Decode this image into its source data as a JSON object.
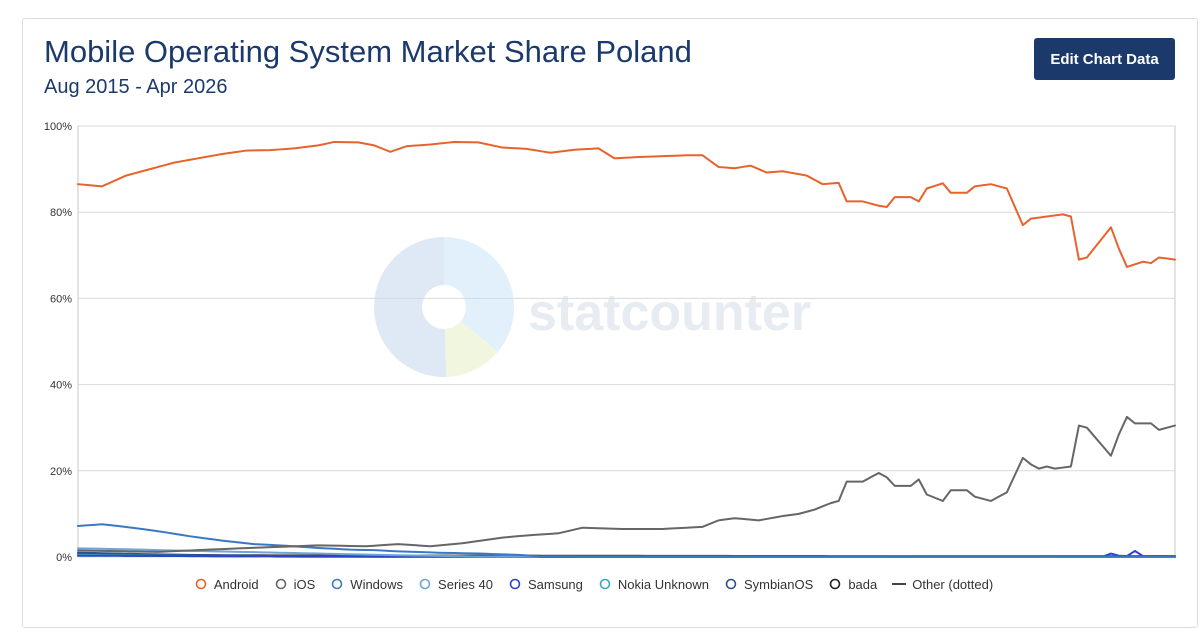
{
  "title": "Mobile Operating System Market Share Poland",
  "subtitle": "Aug 2015 - Apr 2026",
  "edit_button_label": "Edit Chart Data",
  "watermark_text": "statcounter",
  "chart_data": {
    "type": "line",
    "x_start": "2015-08",
    "x_end": "2026-04",
    "y_ticks": [
      "0%",
      "20%",
      "40%",
      "60%",
      "80%",
      "100%"
    ],
    "ylim": [
      0,
      100
    ],
    "grid": true,
    "legend_position": "bottom",
    "series": [
      {
        "name": "Android",
        "color": "#e8622c",
        "line_style": "solid",
        "marker": "circle",
        "anchors": [
          [
            0,
            86.5
          ],
          [
            3,
            86
          ],
          [
            6,
            88.5
          ],
          [
            9,
            90
          ],
          [
            12,
            91.5
          ],
          [
            15,
            92.5
          ],
          [
            18,
            93.5
          ],
          [
            21,
            94.3
          ],
          [
            24,
            94.4
          ],
          [
            27,
            94.8
          ],
          [
            30,
            95.5
          ],
          [
            32,
            96.3
          ],
          [
            35,
            96.2
          ],
          [
            37,
            95.5
          ],
          [
            39,
            94
          ],
          [
            41,
            95.3
          ],
          [
            44,
            95.7
          ],
          [
            47,
            96.3
          ],
          [
            50,
            96.2
          ],
          [
            53,
            95
          ],
          [
            56,
            94.7
          ],
          [
            59,
            93.8
          ],
          [
            62,
            94.5
          ],
          [
            65,
            94.8
          ],
          [
            67,
            92.5
          ],
          [
            70,
            92.8
          ],
          [
            73,
            93
          ],
          [
            76,
            93.2
          ],
          [
            78,
            93.2
          ],
          [
            80,
            90.5
          ],
          [
            82,
            90.2
          ],
          [
            84,
            90.8
          ],
          [
            86,
            89.2
          ],
          [
            88,
            89.5
          ],
          [
            91,
            88.5
          ],
          [
            93,
            86.5
          ],
          [
            95,
            86.8
          ],
          [
            96,
            82.5
          ],
          [
            98,
            82.5
          ],
          [
            100,
            81.5
          ],
          [
            101,
            81.2
          ],
          [
            102,
            83.5
          ],
          [
            104,
            83.5
          ],
          [
            105,
            82.5
          ],
          [
            106,
            85.5
          ],
          [
            108,
            86.7
          ],
          [
            109,
            84.5
          ],
          [
            111,
            84.5
          ],
          [
            112,
            86
          ],
          [
            114,
            86.5
          ],
          [
            116,
            85.5
          ],
          [
            118,
            77
          ],
          [
            119,
            78.5
          ],
          [
            121,
            79
          ],
          [
            123,
            79.5
          ],
          [
            124,
            79
          ],
          [
            125,
            69
          ],
          [
            126,
            69.5
          ],
          [
            129,
            76.5
          ],
          [
            130,
            71.5
          ],
          [
            131,
            67.3
          ],
          [
            133,
            68.5
          ],
          [
            134,
            68.2
          ],
          [
            135,
            69.5
          ],
          [
            137,
            69
          ]
        ]
      },
      {
        "name": "iOS",
        "color": "#666666",
        "line_style": "solid",
        "marker": "circle",
        "anchors": [
          [
            0,
            1.5
          ],
          [
            10,
            1.2
          ],
          [
            20,
            2
          ],
          [
            30,
            2.7
          ],
          [
            36,
            2.5
          ],
          [
            40,
            3
          ],
          [
            44,
            2.5
          ],
          [
            48,
            3.2
          ],
          [
            53,
            4.5
          ],
          [
            56,
            5
          ],
          [
            60,
            5.5
          ],
          [
            63,
            6.8
          ],
          [
            68,
            6.5
          ],
          [
            73,
            6.5
          ],
          [
            78,
            7
          ],
          [
            80,
            8.5
          ],
          [
            82,
            9
          ],
          [
            85,
            8.5
          ],
          [
            88,
            9.5
          ],
          [
            90,
            10
          ],
          [
            92,
            11
          ],
          [
            94,
            12.5
          ],
          [
            95,
            13
          ],
          [
            96,
            17.5
          ],
          [
            98,
            17.5
          ],
          [
            99,
            18.5
          ],
          [
            100,
            19.5
          ],
          [
            101,
            18.5
          ],
          [
            102,
            16.5
          ],
          [
            104,
            16.5
          ],
          [
            105,
            18
          ],
          [
            106,
            14.5
          ],
          [
            108,
            13
          ],
          [
            109,
            15.5
          ],
          [
            111,
            15.5
          ],
          [
            112,
            14
          ],
          [
            114,
            13
          ],
          [
            116,
            15
          ],
          [
            118,
            23
          ],
          [
            119,
            21.5
          ],
          [
            120,
            20.5
          ],
          [
            121,
            21
          ],
          [
            122,
            20.5
          ],
          [
            124,
            21
          ],
          [
            125,
            30.5
          ],
          [
            126,
            30
          ],
          [
            129,
            23.5
          ],
          [
            130,
            28.5
          ],
          [
            131,
            32.5
          ],
          [
            132,
            31
          ],
          [
            134,
            31
          ],
          [
            135,
            29.5
          ],
          [
            137,
            30.5
          ]
        ]
      },
      {
        "name": "Windows",
        "color": "#3a78c4",
        "line_style": "solid",
        "marker": "circle",
        "anchors": [
          [
            0,
            7.2
          ],
          [
            3,
            7.6
          ],
          [
            5,
            7.2
          ],
          [
            8,
            6.5
          ],
          [
            11,
            5.7
          ],
          [
            14,
            4.8
          ],
          [
            18,
            3.8
          ],
          [
            22,
            3
          ],
          [
            26,
            2.6
          ],
          [
            30,
            2.1
          ],
          [
            34,
            1.7
          ],
          [
            37,
            1.6
          ],
          [
            40,
            1.3
          ],
          [
            45,
            1
          ],
          [
            50,
            0.8
          ],
          [
            55,
            0.5
          ],
          [
            58,
            0.1
          ],
          [
            137,
            0.05
          ]
        ]
      },
      {
        "name": "Series 40",
        "color": "#6fa3d9",
        "line_style": "solid",
        "marker": "circle",
        "anchors": [
          [
            0,
            2
          ],
          [
            6,
            1.8
          ],
          [
            12,
            1.5
          ],
          [
            20,
            1.2
          ],
          [
            30,
            0.8
          ],
          [
            40,
            0.4
          ],
          [
            50,
            0.1
          ],
          [
            137,
            0.03
          ]
        ]
      },
      {
        "name": "Samsung",
        "color": "#2b44c8",
        "line_style": "solid",
        "marker": "circle",
        "anchors": [
          [
            0,
            0.3
          ],
          [
            20,
            0.2
          ],
          [
            60,
            0.1
          ],
          [
            128,
            0.1
          ],
          [
            129,
            0.8
          ],
          [
            130,
            0.3
          ],
          [
            131,
            0.2
          ],
          [
            132,
            1.4
          ],
          [
            133,
            0.2
          ],
          [
            137,
            0.2
          ]
        ]
      },
      {
        "name": "Nokia Unknown",
        "color": "#39a8b8",
        "line_style": "solid",
        "marker": "circle",
        "anchors": [
          [
            0,
            0.5
          ],
          [
            10,
            0.3
          ],
          [
            25,
            0.1
          ],
          [
            137,
            0.02
          ]
        ]
      },
      {
        "name": "SymbianOS",
        "color": "#2f4f8f",
        "line_style": "solid",
        "marker": "circle",
        "anchors": [
          [
            0,
            1
          ],
          [
            10,
            0.6
          ],
          [
            25,
            0.2
          ],
          [
            40,
            0.05
          ],
          [
            137,
            0.01
          ]
        ]
      },
      {
        "name": "bada",
        "color": "#222222",
        "line_style": "solid",
        "marker": "circle",
        "anchors": [
          [
            0,
            0.4
          ],
          [
            15,
            0.2
          ],
          [
            30,
            0.05
          ],
          [
            137,
            0.01
          ]
        ]
      },
      {
        "name": "Other (dotted)",
        "color": "#444444",
        "line_style": "solid",
        "marker": "line",
        "anchors": [
          [
            0,
            0.6
          ],
          [
            20,
            0.4
          ],
          [
            60,
            0.3
          ],
          [
            100,
            0.2
          ],
          [
            137,
            0.2
          ]
        ]
      }
    ]
  }
}
